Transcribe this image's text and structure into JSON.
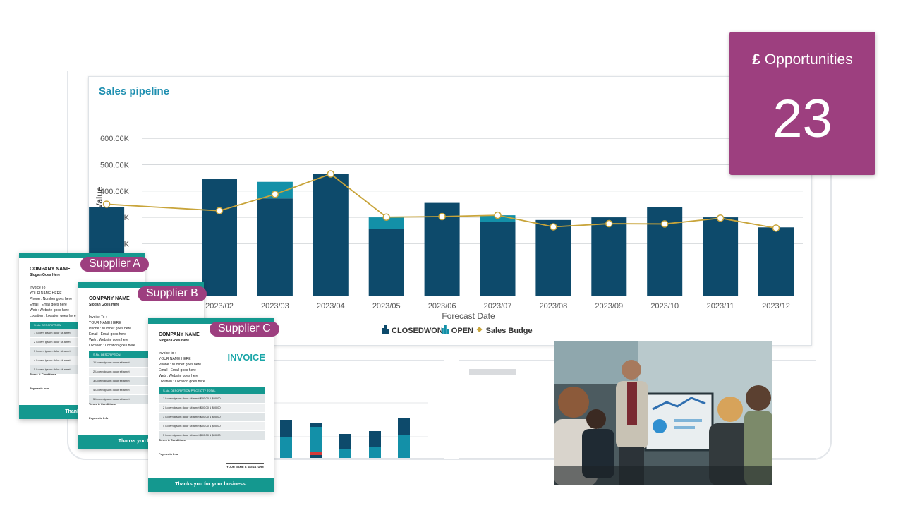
{
  "opportunities": {
    "currency_icon": "£",
    "title": "Opportunities",
    "value": "23",
    "color": "#9d3f7f"
  },
  "chart_data": {
    "type": "bar",
    "title": "Sales pipeline",
    "xlabel": "Forecast Date",
    "ylabel": "Local Sales Value",
    "ylim": [
      0,
      600000
    ],
    "ytick_labels": [
      "200.00K",
      "300.00K",
      "400.00K",
      "500.00K",
      "600.00K"
    ],
    "categories": [
      "2023/02",
      "2023/03",
      "2023/04",
      "2023/05",
      "2023/06",
      "2023/07",
      "2023/08",
      "2023/09",
      "2023/10",
      "2023/11",
      "2023/12"
    ],
    "series": [
      {
        "name": "CLOSEDWON",
        "kind": "bar",
        "color": "#0d4a6b",
        "values": [
          445000,
          372000,
          465000,
          255000,
          355000,
          283000,
          290000,
          300000,
          340000,
          300000,
          262000
        ]
      },
      {
        "name": "OPEN",
        "kind": "bar",
        "color": "#1390a8",
        "values": [
          0,
          63000,
          0,
          45000,
          0,
          25000,
          0,
          0,
          0,
          0,
          0
        ]
      },
      {
        "name": "Sales Budget",
        "kind": "line",
        "color": "#c8a43a",
        "values": [
          325000,
          388000,
          465000,
          301000,
          303000,
          308000,
          264000,
          276000,
          275000,
          297000,
          259000
        ]
      }
    ],
    "legend": [
      "CLOSEDWON",
      "OPEN",
      "Sales Budge"
    ],
    "legend_position": "bottom",
    "grid": true,
    "partial_first": {
      "closedwon": 338000,
      "budget": 350000
    }
  },
  "invoices": [
    {
      "label": "Supplier A",
      "company": "COMPANY NAME",
      "slogan": "Slogan Goes Here",
      "lines": [
        "Invoice To :",
        "YOUR NAME HERE",
        "Phone   : Number goes here",
        "Email   : Email goes here",
        "Web     : Website goes here",
        "Location : Location goes here"
      ],
      "table_header": "S.No.        DESCRIPTION",
      "rows": [
        "1     Lorem ipsum dolor sit amet",
        "2     Lorem ipsum dolor sit amet",
        "3     Lorem ipsum dolor sit amet",
        "4     Lorem ipsum dolor sit amet",
        "5     Lorem ipsum dolor sit amet"
      ],
      "terms": "Terms & Conditions",
      "payment": "Payments Info",
      "footer": "Thanks you fo"
    },
    {
      "label": "Supplier B",
      "company": "COMPANY NAME",
      "slogan": "Slogan Goes Here",
      "lines": [
        "Invoice To :",
        "YOUR NAME HERE",
        "Phone   : Number goes here",
        "Email   : Email goes here",
        "Web     : Website goes here",
        "Location : Location goes here"
      ],
      "table_header": "S.No.        DESCRIPTION",
      "rows": [
        "1     Lorem ipsum dolor sit amet",
        "2     Lorem ipsum dolor sit amet",
        "3     Lorem ipsum dolor sit amet",
        "4     Lorem ipsum dolor sit amet",
        "5     Lorem ipsum dolor sit amet"
      ],
      "terms": "Terms & Conditions",
      "payment": "Payments Info",
      "footer": "Thanks you for you"
    },
    {
      "label": "Supplier C",
      "company": "COMPANY NAME",
      "slogan": "Slogan Goes Here",
      "title": "INVOICE",
      "lines": [
        "Invoice to :",
        "YOUR NAME HERE",
        "Phone   : Number goes here",
        "Email   : Email goes here",
        "Web     : Website goes here",
        "Location : Location goes here"
      ],
      "table_header": "S.No.     DESCRIPTION            PRICE   QTY   TOTAL",
      "rows": [
        "1    Lorem ipsum dolor sit amet    $00.00   1   $00.00",
        "2    Lorem ipsum dolor sit amet    $00.00   1   $00.00",
        "3    Lorem ipsum dolor sit amet    $00.00   1   $00.00",
        "4    Lorem ipsum dolor sit amet    $00.00   1   $00.00",
        "5    Lorem ipsum dolor sit amet    $00.00   1   $00.00"
      ],
      "terms": "Terms & Conditions",
      "payment": "Payments Info",
      "signature": "YOUR NAME & SIGNATURE",
      "footer": "Thanks you for your business."
    }
  ],
  "colors": {
    "navy": "#0d4a6b",
    "teal": "#1390a8",
    "budget": "#c8a43a",
    "accent": "#9d3f7f",
    "invoice_teal": "#14988f"
  }
}
